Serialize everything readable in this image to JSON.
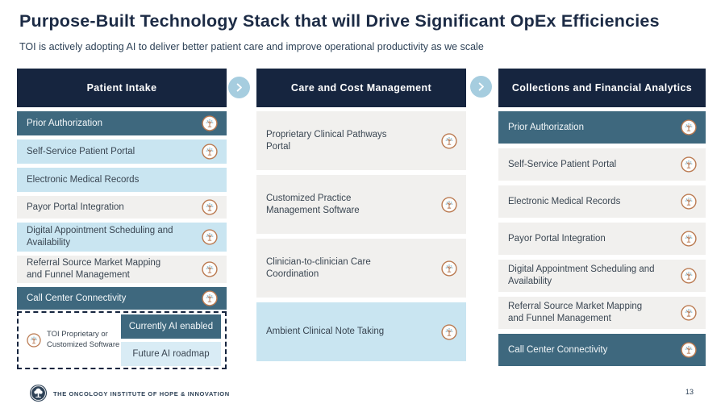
{
  "page": {
    "title": "Purpose-Built Technology Stack that will Drive Significant OpEx Efficiencies",
    "subtitle": "TOI is actively adopting AI to deliver better patient care and improve operational productivity as we scale",
    "footer_brand": "THE ONCOLOGY INSTITUTE OF HOPE & INNOVATION",
    "page_number": "13"
  },
  "colors": {
    "navy": "#16253F",
    "teal": "#3E687E",
    "light_blue": "#C9E5F1",
    "legend_blue": "#D9ECF5",
    "light_gray": "#F1F0EE",
    "arrow_blue": "#A6CDDF",
    "copper": "#BB7B52",
    "canopy_blue": "#9FC9DC",
    "text_dark": "#3A4652",
    "title": "#1C2B45",
    "subtitle": "#2E4257"
  },
  "icons": {
    "row_icon": "toi-tree-logo",
    "arrow": "chevron-right",
    "footer_logo": "toi-tree-logo"
  },
  "columns": [
    {
      "header": "Patient Intake",
      "items": [
        {
          "label": "Prior Authorization",
          "style": "ai-enabled",
          "icon": true
        },
        {
          "label": "Self-Service Patient Portal",
          "style": "ai-roadmap",
          "icon": true
        },
        {
          "label": "Electronic Medical Records",
          "style": "ai-roadmap",
          "icon": false
        },
        {
          "label": "Payor Portal Integration",
          "style": "standard",
          "icon": true
        },
        {
          "label": "Digital Appointment Scheduling and Availability",
          "style": "ai-roadmap",
          "icon": true
        },
        {
          "label": "Referral Source Market Mapping and Funnel Management",
          "style": "standard",
          "icon": true
        },
        {
          "label": "Call Center Connectivity",
          "style": "ai-enabled",
          "icon": true
        }
      ]
    },
    {
      "header": "Care and Cost Management",
      "items": [
        {
          "label": "Proprietary Clinical Pathways Portal",
          "style": "standard",
          "icon": true
        },
        {
          "label": "Customized Practice Management Software",
          "style": "standard",
          "icon": true
        },
        {
          "label": "Clinician-to-clinician Care Coordination",
          "style": "standard",
          "icon": true
        },
        {
          "label": "Ambient Clinical Note Taking",
          "style": "ai-roadmap",
          "icon": true
        }
      ]
    },
    {
      "header": "Collections and Financial Analytics",
      "items": [
        {
          "label": "Prior Authorization",
          "style": "ai-enabled",
          "icon": true
        },
        {
          "label": "Self-Service Patient Portal",
          "style": "standard",
          "icon": true
        },
        {
          "label": "Electronic Medical Records",
          "style": "standard",
          "icon": true
        },
        {
          "label": "Payor Portal Integration",
          "style": "standard",
          "icon": true
        },
        {
          "label": "Digital Appointment Scheduling and Availability",
          "style": "standard",
          "icon": true
        },
        {
          "label": "Referral Source Market Mapping and Funnel Management",
          "style": "standard",
          "icon": true
        },
        {
          "label": "Call Center Connectivity",
          "style": "ai-enabled",
          "icon": true
        }
      ]
    }
  ],
  "legend": {
    "proprietary_label": "TOI Proprietary or Customized Software",
    "ai_enabled_label": "Currently AI enabled",
    "ai_roadmap_label": "Future AI roadmap"
  }
}
